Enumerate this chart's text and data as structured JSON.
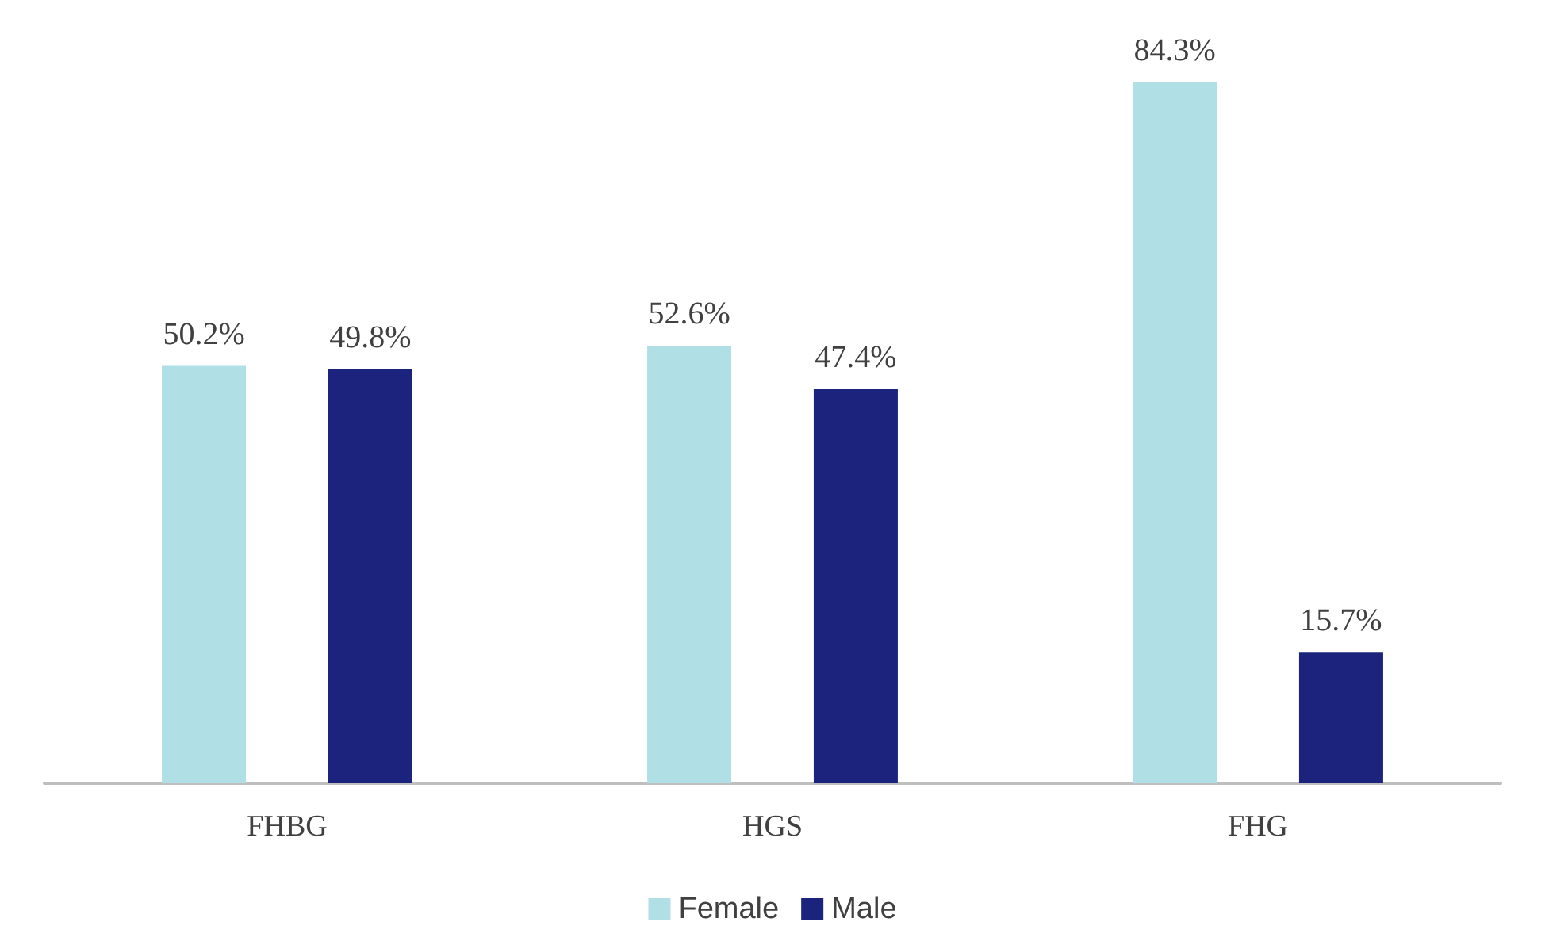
{
  "chart_data": {
    "type": "bar",
    "categories": [
      "FHBG",
      "HGS",
      "FHG"
    ],
    "series": [
      {
        "name": "Female",
        "color": "#b0e0e6",
        "values": [
          50.2,
          52.6,
          84.3
        ],
        "value_labels": [
          "50.2%",
          "52.6%",
          "84.3%"
        ]
      },
      {
        "name": "Male",
        "color": "#1c237c",
        "values": [
          49.8,
          47.4,
          15.7
        ],
        "value_labels": [
          "49.8%",
          "47.4%",
          "15.7%"
        ]
      }
    ],
    "legend": "bottom"
  }
}
